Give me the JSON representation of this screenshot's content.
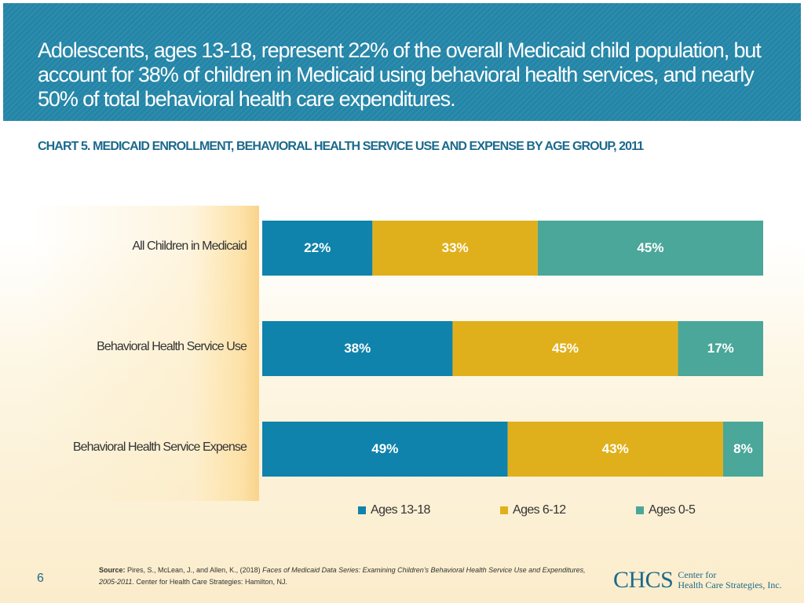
{
  "header": {
    "title": "Adolescents, ages 13-18, represent 22% of the overall Medicaid child population, but account for 38% of children in Medicaid using behavioral health services, and nearly 50% of total behavioral health care expenditures."
  },
  "colors": {
    "header_bg": "#2385a7",
    "ages_13_18": "#0f83ab",
    "ages_6_12": "#e0b01c",
    "ages_0_5": "#4aa79a",
    "title_text": "#1b6a8c"
  },
  "chart_data": {
    "type": "bar",
    "orientation": "horizontal-stacked-100",
    "title": "CHART 5. MEDICAID ENROLLMENT, BEHAVIORAL HEALTH SERVICE USE AND EXPENSE BY AGE GROUP, 2011",
    "categories": [
      "All Children in Medicaid",
      "Behavioral Health Service Use",
      "Behavioral Health Service Expense"
    ],
    "series": [
      {
        "name": "Ages 13-18",
        "values": [
          22,
          38,
          49
        ],
        "labels": [
          "22%",
          "38%",
          "49%"
        ]
      },
      {
        "name": "Ages 6-12",
        "values": [
          33,
          45,
          43
        ],
        "labels": [
          "33%",
          "45%",
          "43%"
        ]
      },
      {
        "name": "Ages 0-5",
        "values": [
          45,
          17,
          8
        ],
        "labels": [
          "45%",
          "17%",
          "8%"
        ]
      }
    ],
    "xlim": [
      0,
      100
    ],
    "legend_position": "bottom",
    "grid": false
  },
  "footer": {
    "page_number": "6",
    "source_label": "Source:",
    "source_text_1": " Pires, S., McLean, J., and Allen, K., (2018) ",
    "source_italic": "Faces of Medicaid Data Series: Examining Children’s Behavioral Health Service Use and Expenditures, 2005-2011",
    "source_text_2": ". Center for Health Care Strategies: Hamilton, NJ.",
    "logo_mark": "CHCS",
    "logo_line1": "Center for",
    "logo_line2": "Health Care Strategies, Inc."
  }
}
